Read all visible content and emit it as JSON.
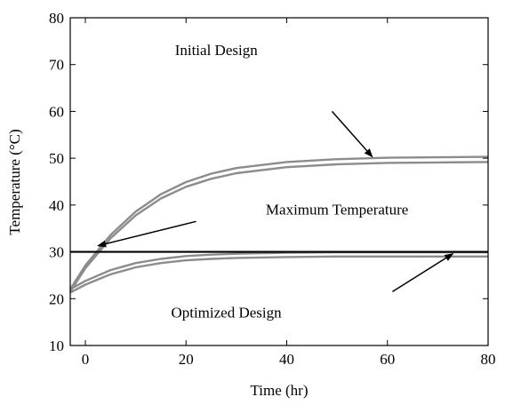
{
  "chart_data": {
    "type": "line",
    "xlabel": "Time (hr)",
    "ylabel": "Temperature (°C)",
    "xlim": [
      -3,
      80
    ],
    "ylim": [
      10,
      80
    ],
    "x_ticks": [
      0,
      20,
      40,
      60,
      80
    ],
    "y_ticks": [
      10,
      20,
      30,
      40,
      50,
      60,
      70,
      80
    ],
    "x_tick_labels": [
      "0",
      "20",
      "40",
      "60",
      "80"
    ],
    "y_tick_labels": [
      "10",
      "20",
      "30",
      "40",
      "50",
      "60",
      "70",
      "80"
    ],
    "grid": false,
    "series_color": "#8c8c8c",
    "threshold_color": "#000000",
    "series": [
      {
        "x": [
          -3,
          0,
          5,
          10,
          15,
          20,
          25,
          30,
          40,
          50,
          60,
          70,
          80
        ],
        "y": [
          22,
          27.1,
          33.6,
          38.6,
          42.3,
          44.9,
          46.7,
          47.9,
          49.2,
          49.8,
          50.1,
          50.2,
          50.3
        ]
      },
      {
        "x": [
          -3,
          0,
          5,
          10,
          15,
          20,
          25,
          30,
          40,
          50,
          60,
          70,
          80
        ],
        "y": [
          21.5,
          26.5,
          32.9,
          37.8,
          41.4,
          43.9,
          45.6,
          46.8,
          48.1,
          48.7,
          49,
          49.1,
          49.2
        ]
      },
      {
        "x": [
          -3,
          0,
          5,
          10,
          15,
          20,
          25,
          30,
          40,
          50,
          60,
          70,
          80
        ],
        "y": [
          22,
          23.8,
          26.1,
          27.6,
          28.5,
          29.1,
          29.4,
          29.6,
          29.8,
          29.9,
          29.9,
          29.9,
          29.9
        ]
      },
      {
        "x": [
          -3,
          0,
          5,
          10,
          15,
          20,
          25,
          30,
          40,
          50,
          60,
          70,
          80
        ],
        "y": [
          21.3,
          23,
          25.2,
          26.7,
          27.6,
          28.2,
          28.5,
          28.7,
          28.9,
          29,
          29,
          29,
          29
        ]
      }
    ],
    "threshold": {
      "y": 30
    },
    "annotations": [
      {
        "text": "Initial Design",
        "x": 26,
        "y": 72
      },
      {
        "text": "Maximum Temperature",
        "x": 50,
        "y": 38
      },
      {
        "text": "Optimized Design",
        "x": 28,
        "y": 16
      }
    ],
    "arrows": [
      {
        "from": [
          49,
          60
        ],
        "to": [
          57,
          50.3
        ]
      },
      {
        "from": [
          22,
          36.5
        ],
        "to": [
          2.5,
          31.3
        ]
      },
      {
        "from": [
          61,
          21.5
        ],
        "to": [
          73,
          29.6
        ]
      }
    ]
  }
}
